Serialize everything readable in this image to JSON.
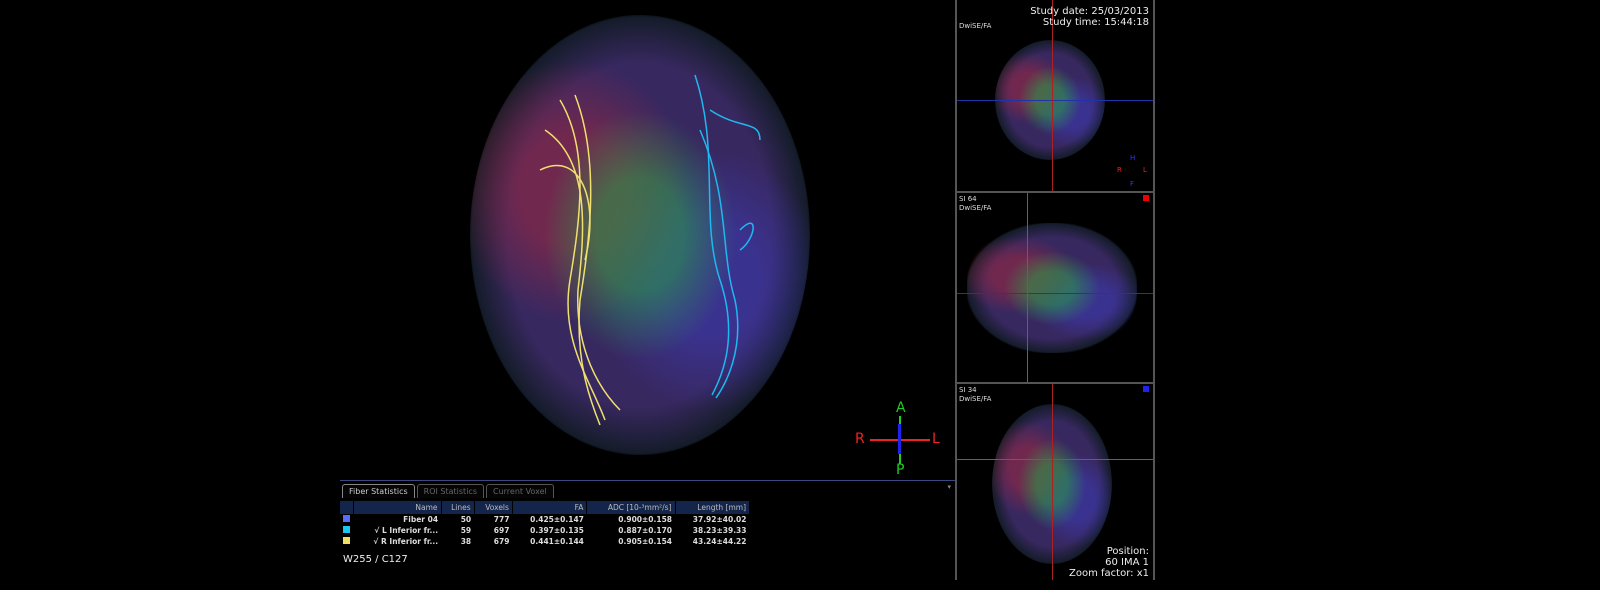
{
  "study": {
    "date": "Study date: 25/03/2013",
    "time": "Study time: 15:44:18"
  },
  "views": [
    {
      "series": "DwiSE/FA",
      "slice": ""
    },
    {
      "series": "DwiSE/FA",
      "slice": "SI 64"
    },
    {
      "series": "DwiSE/FA",
      "slice": "SI 34"
    }
  ],
  "position": {
    "label": "Position:",
    "value": "60 IMA 1",
    "zoom": "Zoom factor: x1"
  },
  "orientation": {
    "a": "A",
    "p": "P",
    "r": "R",
    "l": "L",
    "h": "H",
    "f": "F"
  },
  "window_level": "W255 / C127",
  "stats": {
    "tabs": [
      "Fiber Statistics",
      "ROI Statistics",
      "Current Voxel"
    ],
    "columns": [
      "Name",
      "Lines",
      "Voxels",
      "FA",
      "ADC [10-³mm²/s]",
      "Length [mm]"
    ],
    "rows": [
      {
        "color": "#5a6cff",
        "name": "Fiber 04",
        "lines": "50",
        "voxels": "777",
        "fa": "0.425±0.147",
        "adc": "0.900±0.158",
        "length": "37.92±40.02"
      },
      {
        "color": "#19c8f0",
        "name": "√ L Inferior fr...",
        "lines": "59",
        "voxels": "697",
        "fa": "0.397±0.135",
        "adc": "0.887±0.170",
        "length": "38.23±39.33"
      },
      {
        "color": "#f0e060",
        "name": "√ R Inferior fr...",
        "lines": "38",
        "voxels": "679",
        "fa": "0.441±0.144",
        "adc": "0.905±0.154",
        "length": "43.24±44.22"
      }
    ]
  },
  "colors": {
    "fiber_left": "#f0e070",
    "fiber_right": "#20b8f0",
    "crosshair_h": "#2233aa",
    "crosshair_v": "#aa2222"
  }
}
